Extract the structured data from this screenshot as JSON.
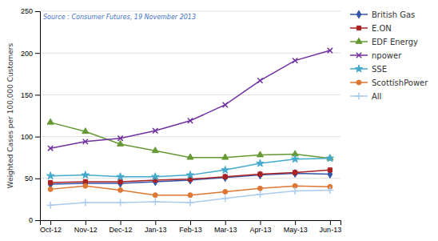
{
  "chart_data": {
    "type": "line",
    "categories": [
      "Oct-12",
      "Nov-12",
      "Dec-12",
      "Jan-13",
      "Feb-13",
      "Mar-13",
      "Apr-13",
      "May-13",
      "Jun-13"
    ],
    "series": [
      {
        "name": "British Gas",
        "color": "#3355aa",
        "marker": "diamond",
        "values": [
          43,
          44,
          44,
          46,
          48,
          51,
          54,
          56,
          55
        ]
      },
      {
        "name": "E.ON",
        "color": "#aa2222",
        "marker": "square",
        "values": [
          45,
          46,
          46,
          48,
          49,
          52,
          55,
          57,
          60
        ]
      },
      {
        "name": "EDF Energy",
        "color": "#669933",
        "marker": "triangle",
        "values": [
          117,
          106,
          91,
          83,
          75,
          75,
          78,
          79,
          74
        ]
      },
      {
        "name": "npower",
        "color": "#7030a0",
        "marker": "x",
        "values": [
          86,
          94,
          98,
          107,
          119,
          138,
          167,
          191,
          203
        ]
      },
      {
        "name": "SSE",
        "color": "#44aacc",
        "marker": "star",
        "values": [
          53,
          54,
          52,
          52,
          54,
          60,
          68,
          73,
          74
        ]
      },
      {
        "name": "ScottishPower",
        "color": "#dd7733",
        "marker": "circle",
        "values": [
          37,
          41,
          36,
          30,
          30,
          34,
          38,
          41,
          40
        ]
      },
      {
        "name": "All",
        "color": "#aaccee",
        "marker": "plus",
        "values": [
          18,
          21,
          21,
          22,
          21,
          26,
          31,
          35,
          36
        ]
      }
    ],
    "ylabel": "Weighted Cases per 100,000 Customers",
    "ylim": [
      0,
      250
    ],
    "yticks": [
      0,
      50,
      100,
      150,
      200,
      250
    ],
    "annotation": "Source : Consumer Futures, 19 November 2013",
    "grid": true,
    "legend": "right"
  }
}
